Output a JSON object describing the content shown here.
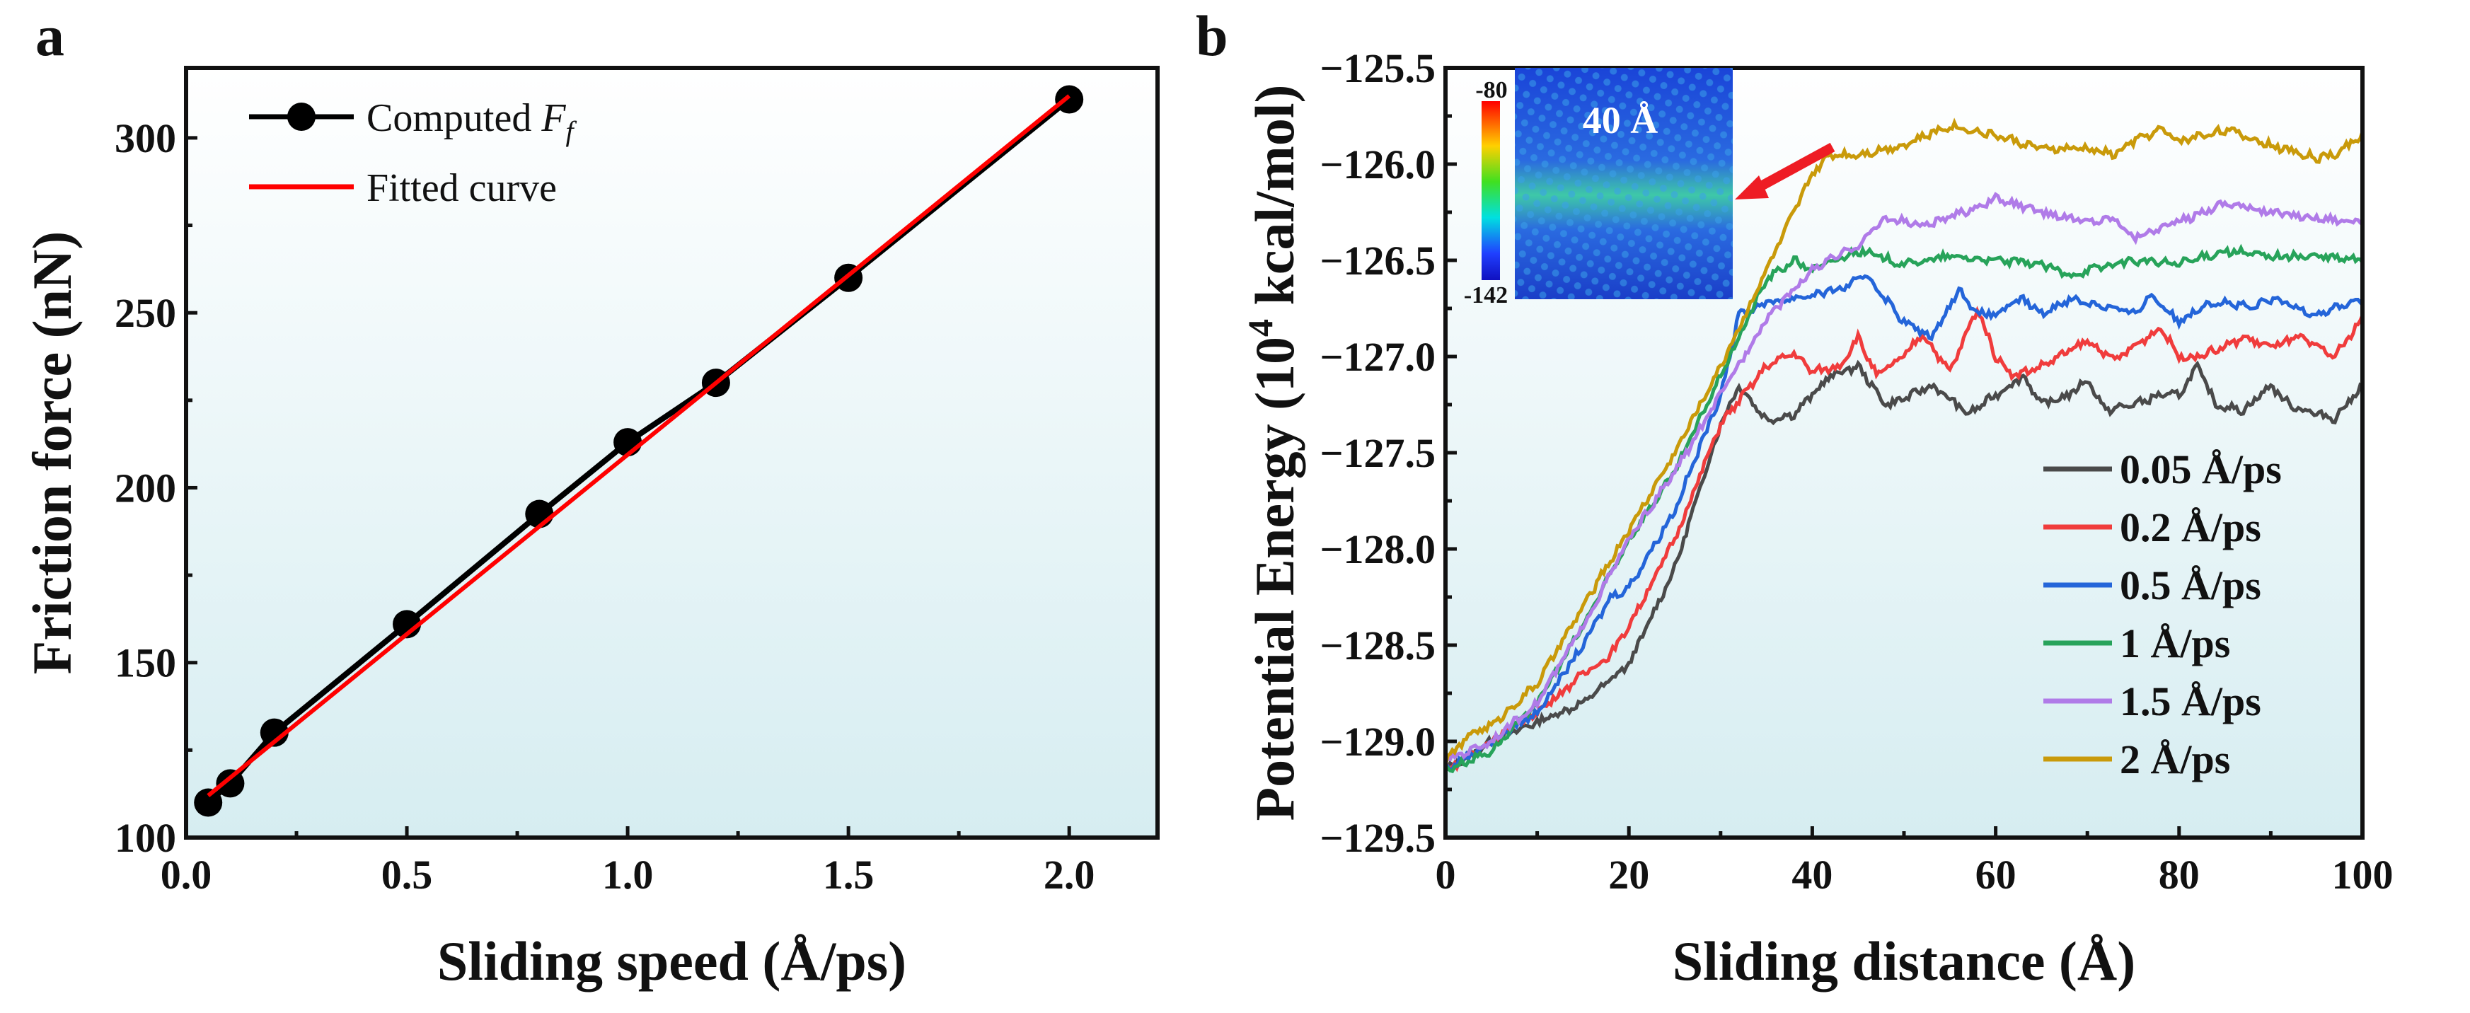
{
  "chart_data": [
    {
      "panel": "a",
      "type": "line",
      "xlabel": "Sliding speed (Å/ps)",
      "ylabel": "Friction force (nN)",
      "xlim": [
        0,
        2.2
      ],
      "ylim": [
        100,
        320
      ],
      "xticks": [
        "0.0",
        "0.5",
        "1.0",
        "1.5",
        "2.0"
      ],
      "xtick_values": [
        0,
        0.5,
        1.0,
        1.5,
        2.0
      ],
      "yticks": [
        "100",
        "150",
        "200",
        "250",
        "300"
      ],
      "ytick_values": [
        100,
        150,
        200,
        250,
        300
      ],
      "legend_position": "top-left",
      "series": [
        {
          "name": "Computed F_f",
          "legend_prefix": "Computed ",
          "legend_italic": "F",
          "legend_sub": "f",
          "color": "#000000",
          "marker": "circle",
          "x": [
            0.05,
            0.1,
            0.2,
            0.5,
            0.8,
            1.0,
            1.2,
            1.5,
            2.0
          ],
          "y": [
            110,
            115.5,
            130,
            161,
            192.5,
            213,
            230,
            260,
            311
          ]
        },
        {
          "name": "Fitted curve",
          "color": "#ff0000",
          "x": [
            0.05,
            2.0
          ],
          "y": [
            112,
            312
          ]
        }
      ]
    },
    {
      "panel": "b",
      "type": "line",
      "xlabel": "Sliding distance (Å)",
      "ylabel_prefix": "Potential Energy (10",
      "ylabel_sup": "4",
      "ylabel_suffix": " kcal/mol)",
      "xlim": [
        0,
        100
      ],
      "ylim": [
        -129.5,
        -125.5
      ],
      "xticks": [
        "0",
        "20",
        "40",
        "60",
        "80",
        "100"
      ],
      "xtick_values": [
        0,
        20,
        40,
        60,
        80,
        100
      ],
      "yticks": [
        "−129.5",
        "−129.0",
        "−128.5",
        "−128.0",
        "−127.5",
        "−127.0",
        "−126.5",
        "−126.0",
        "−125.5"
      ],
      "ytick_values": [
        -129.5,
        -129,
        -128.5,
        -128,
        -127.5,
        -127,
        -126.5,
        -126,
        -125.5
      ],
      "legend_position": "bottom-right",
      "inset": {
        "label": "40 Å",
        "colorbar_max": "-80",
        "colorbar_min": "-142"
      },
      "series": [
        {
          "name": "0.05 Å/ps",
          "color": "#4a4a4a",
          "x": [
            0,
            5,
            10,
            15,
            20,
            25,
            30,
            32,
            35,
            38,
            42,
            45,
            48,
            50,
            53,
            55,
            57,
            60,
            63,
            65,
            68,
            70,
            72,
            75,
            78,
            80,
            82,
            84,
            87,
            90,
            92,
            95,
            97,
            100
          ],
          "y": [
            -129.15,
            -129.0,
            -128.9,
            -128.8,
            -128.6,
            -128.1,
            -127.35,
            -127.15,
            -127.33,
            -127.3,
            -127.1,
            -127.05,
            -127.25,
            -127.22,
            -127.15,
            -127.22,
            -127.3,
            -127.2,
            -127.1,
            -127.25,
            -127.2,
            -127.12,
            -127.28,
            -127.25,
            -127.2,
            -127.2,
            -127.05,
            -127.25,
            -127.28,
            -127.15,
            -127.25,
            -127.3,
            -127.32,
            -127.15
          ]
        },
        {
          "name": "0.2 Å/ps",
          "color": "#f03c3c",
          "x": [
            0,
            5,
            10,
            15,
            18,
            20,
            25,
            30,
            35,
            38,
            40,
            43,
            45,
            47,
            50,
            52,
            55,
            58,
            60,
            62,
            65,
            70,
            73,
            75,
            78,
            80,
            82,
            85,
            87,
            90,
            93,
            95,
            97,
            100
          ],
          "y": [
            -129.15,
            -129.0,
            -128.85,
            -128.65,
            -128.55,
            -128.4,
            -127.95,
            -127.35,
            -127.05,
            -126.98,
            -127.08,
            -127.05,
            -126.9,
            -127.1,
            -127.0,
            -126.88,
            -127.08,
            -126.75,
            -127.0,
            -127.1,
            -127.05,
            -126.92,
            -127.02,
            -126.95,
            -126.85,
            -127.0,
            -127.0,
            -126.95,
            -126.9,
            -126.95,
            -126.9,
            -126.95,
            -127.0,
            -126.8
          ]
        },
        {
          "name": "0.5 Å/ps",
          "color": "#2465d9",
          "x": [
            0,
            5,
            10,
            15,
            18,
            20,
            25,
            30,
            32,
            35,
            40,
            43,
            46,
            50,
            53,
            56,
            58,
            60,
            63,
            65,
            68,
            70,
            73,
            75,
            77,
            80,
            83,
            85,
            88,
            90,
            95,
            100
          ],
          "y": [
            -129.15,
            -129.0,
            -128.85,
            -128.5,
            -128.25,
            -128.2,
            -127.8,
            -127.2,
            -126.78,
            -126.72,
            -126.68,
            -126.65,
            -126.58,
            -126.82,
            -126.9,
            -126.65,
            -126.78,
            -126.78,
            -126.7,
            -126.78,
            -126.7,
            -126.72,
            -126.75,
            -126.78,
            -126.68,
            -126.82,
            -126.72,
            -126.72,
            -126.75,
            -126.7,
            -126.78,
            -126.7
          ]
        },
        {
          "name": "1 Å/ps",
          "color": "#27a35a",
          "x": [
            0,
            5,
            10,
            15,
            20,
            25,
            30,
            35,
            38,
            40,
            45,
            50,
            55,
            60,
            65,
            68,
            70,
            75,
            80,
            85,
            90,
            95,
            100
          ],
          "y": [
            -129.15,
            -129.05,
            -128.8,
            -128.4,
            -127.95,
            -127.6,
            -127.1,
            -126.6,
            -126.5,
            -126.55,
            -126.45,
            -126.52,
            -126.48,
            -126.5,
            -126.52,
            -126.58,
            -126.55,
            -126.5,
            -126.52,
            -126.45,
            -126.48,
            -126.48,
            -126.5
          ]
        },
        {
          "name": "1.5 Å/ps",
          "color": "#b07be8",
          "x": [
            0,
            5,
            10,
            15,
            20,
            25,
            30,
            35,
            40,
            45,
            48,
            52,
            55,
            60,
            65,
            70,
            73,
            75,
            80,
            85,
            90,
            95,
            100
          ],
          "y": [
            -129.1,
            -129.0,
            -128.8,
            -128.4,
            -127.95,
            -127.6,
            -127.2,
            -126.8,
            -126.55,
            -126.42,
            -126.28,
            -126.32,
            -126.28,
            -126.18,
            -126.25,
            -126.3,
            -126.28,
            -126.38,
            -126.3,
            -126.2,
            -126.25,
            -126.28,
            -126.3
          ]
        },
        {
          "name": "2 Å/ps",
          "color": "#c99a0a",
          "x": [
            0,
            3,
            5,
            10,
            15,
            20,
            25,
            30,
            35,
            40,
            42,
            45,
            50,
            55,
            60,
            65,
            70,
            73,
            75,
            78,
            80,
            85,
            90,
            95,
            97,
            100
          ],
          "y": [
            -129.1,
            -128.95,
            -128.92,
            -128.7,
            -128.3,
            -127.9,
            -127.5,
            -127.05,
            -126.55,
            -126.05,
            -125.95,
            -125.95,
            -125.9,
            -125.8,
            -125.85,
            -125.92,
            -125.92,
            -125.95,
            -125.88,
            -125.82,
            -125.88,
            -125.82,
            -125.9,
            -125.97,
            -125.95,
            -125.85
          ]
        }
      ]
    }
  ]
}
